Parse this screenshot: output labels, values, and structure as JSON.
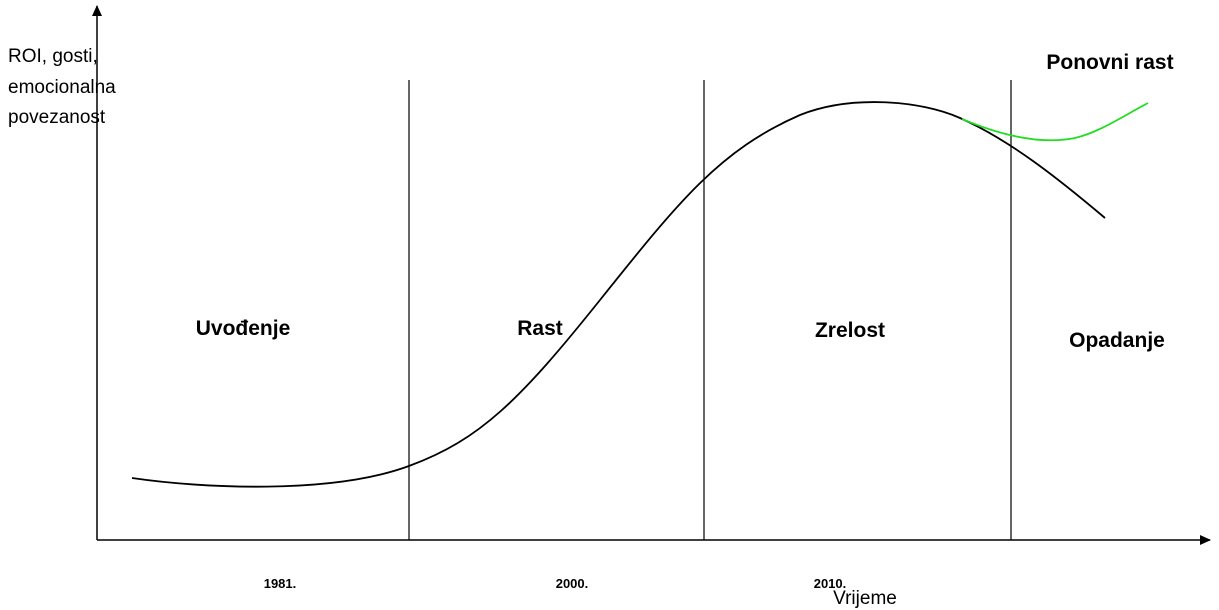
{
  "y_axis_label": [
    "ROI, gosti,",
    "emocionalna",
    "povezanost"
  ],
  "x_axis_label": "Vrijeme",
  "phases": [
    "Uvođenje",
    "Rast",
    "Zrelost",
    "Opadanje"
  ],
  "years": [
    "1981.",
    "2000.",
    "2010."
  ],
  "annotation": "Ponovni rast"
}
